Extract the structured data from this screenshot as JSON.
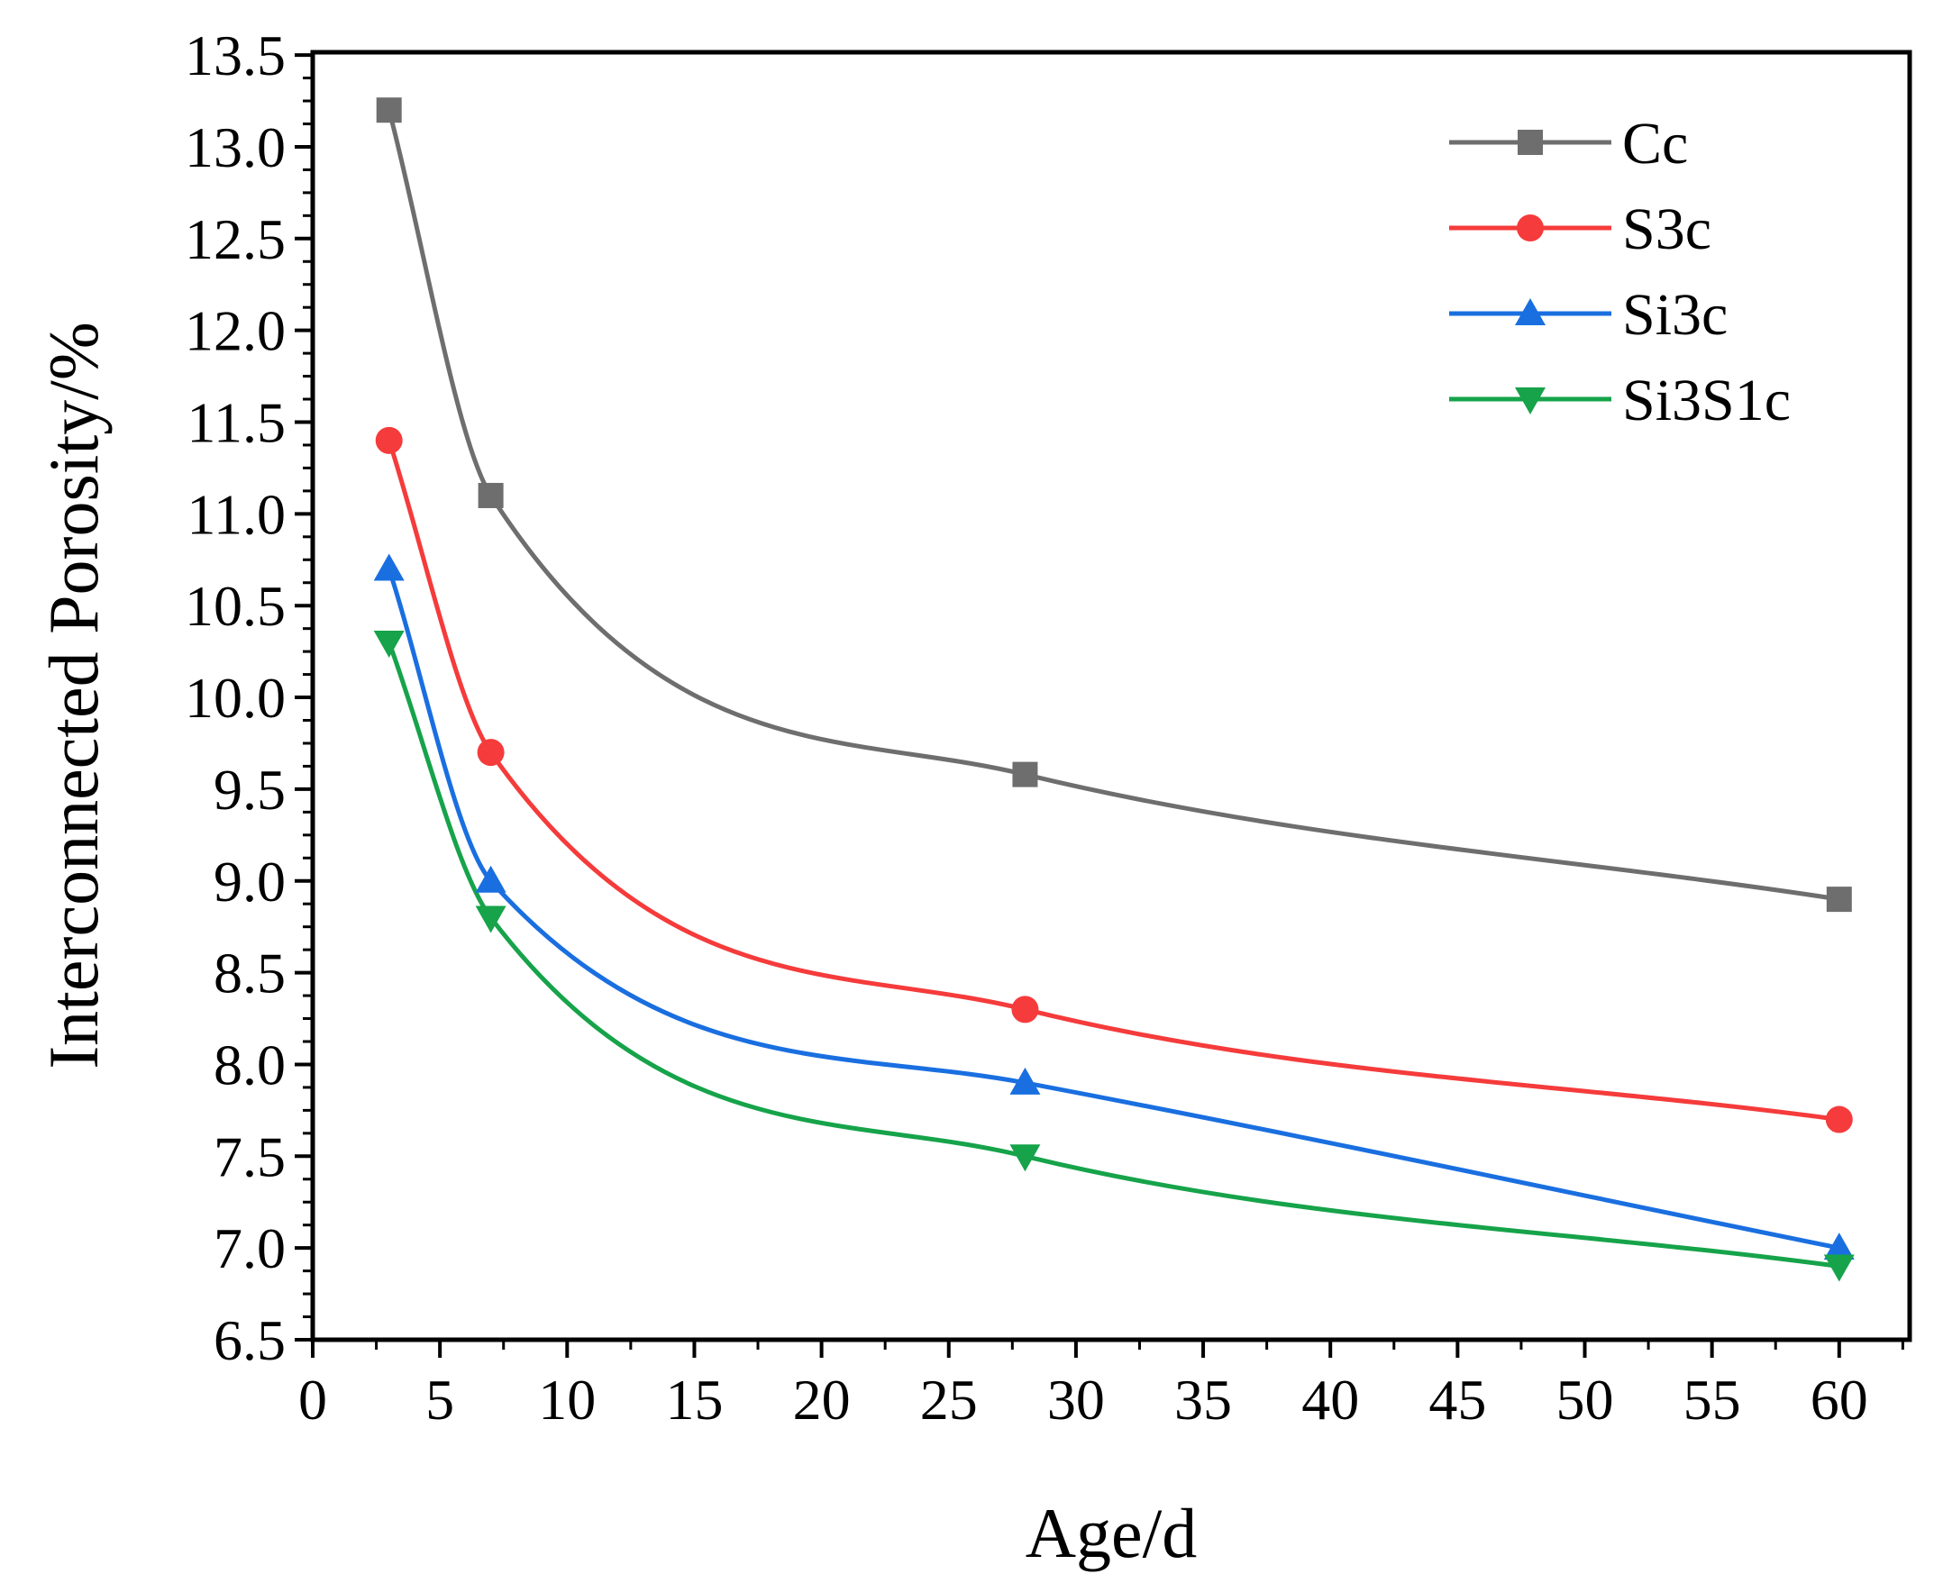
{
  "chart_data": {
    "type": "line",
    "title": "",
    "xlabel": "Age/d",
    "ylabel": "Interconnected Porosity/%",
    "xlim": [
      0,
      63
    ],
    "ylim": [
      6.5,
      13.5
    ],
    "x_ticks": [
      0,
      5,
      10,
      15,
      20,
      25,
      30,
      35,
      40,
      45,
      50,
      55,
      60
    ],
    "x_tick_labels": [
      "0",
      "5",
      "10",
      "15",
      "20",
      "25",
      "30",
      "35",
      "40",
      "45",
      "50",
      "55",
      "60"
    ],
    "y_ticks": [
      6.5,
      7.0,
      7.5,
      8.0,
      8.5,
      9.0,
      9.5,
      10.0,
      10.5,
      11.0,
      11.5,
      12.0,
      12.5,
      13.0,
      13.5
    ],
    "y_tick_labels": [
      "6.5",
      "7.0",
      "7.5",
      "8.0",
      "8.5",
      "9.0",
      "9.5",
      "10.0",
      "10.5",
      "11.0",
      "11.5",
      "12.0",
      "12.5",
      "13.0",
      "13.5"
    ],
    "grid": false,
    "legend_position": "top-right",
    "x": [
      3,
      7,
      28,
      60
    ],
    "series": [
      {
        "name": "Cc",
        "values": [
          13.2,
          11.1,
          9.58,
          8.9
        ],
        "color": "#6e6e6e",
        "marker": "square"
      },
      {
        "name": "S3c",
        "values": [
          11.4,
          9.7,
          8.3,
          7.7
        ],
        "color": "#f53b3b",
        "marker": "circle"
      },
      {
        "name": "Si3c",
        "values": [
          10.7,
          9.0,
          7.9,
          7.0
        ],
        "color": "#1a6fe0",
        "marker": "triangle-up"
      },
      {
        "name": "Si3S1c",
        "values": [
          10.3,
          8.8,
          7.5,
          6.9
        ],
        "color": "#16a34a",
        "marker": "triangle-down"
      }
    ]
  }
}
